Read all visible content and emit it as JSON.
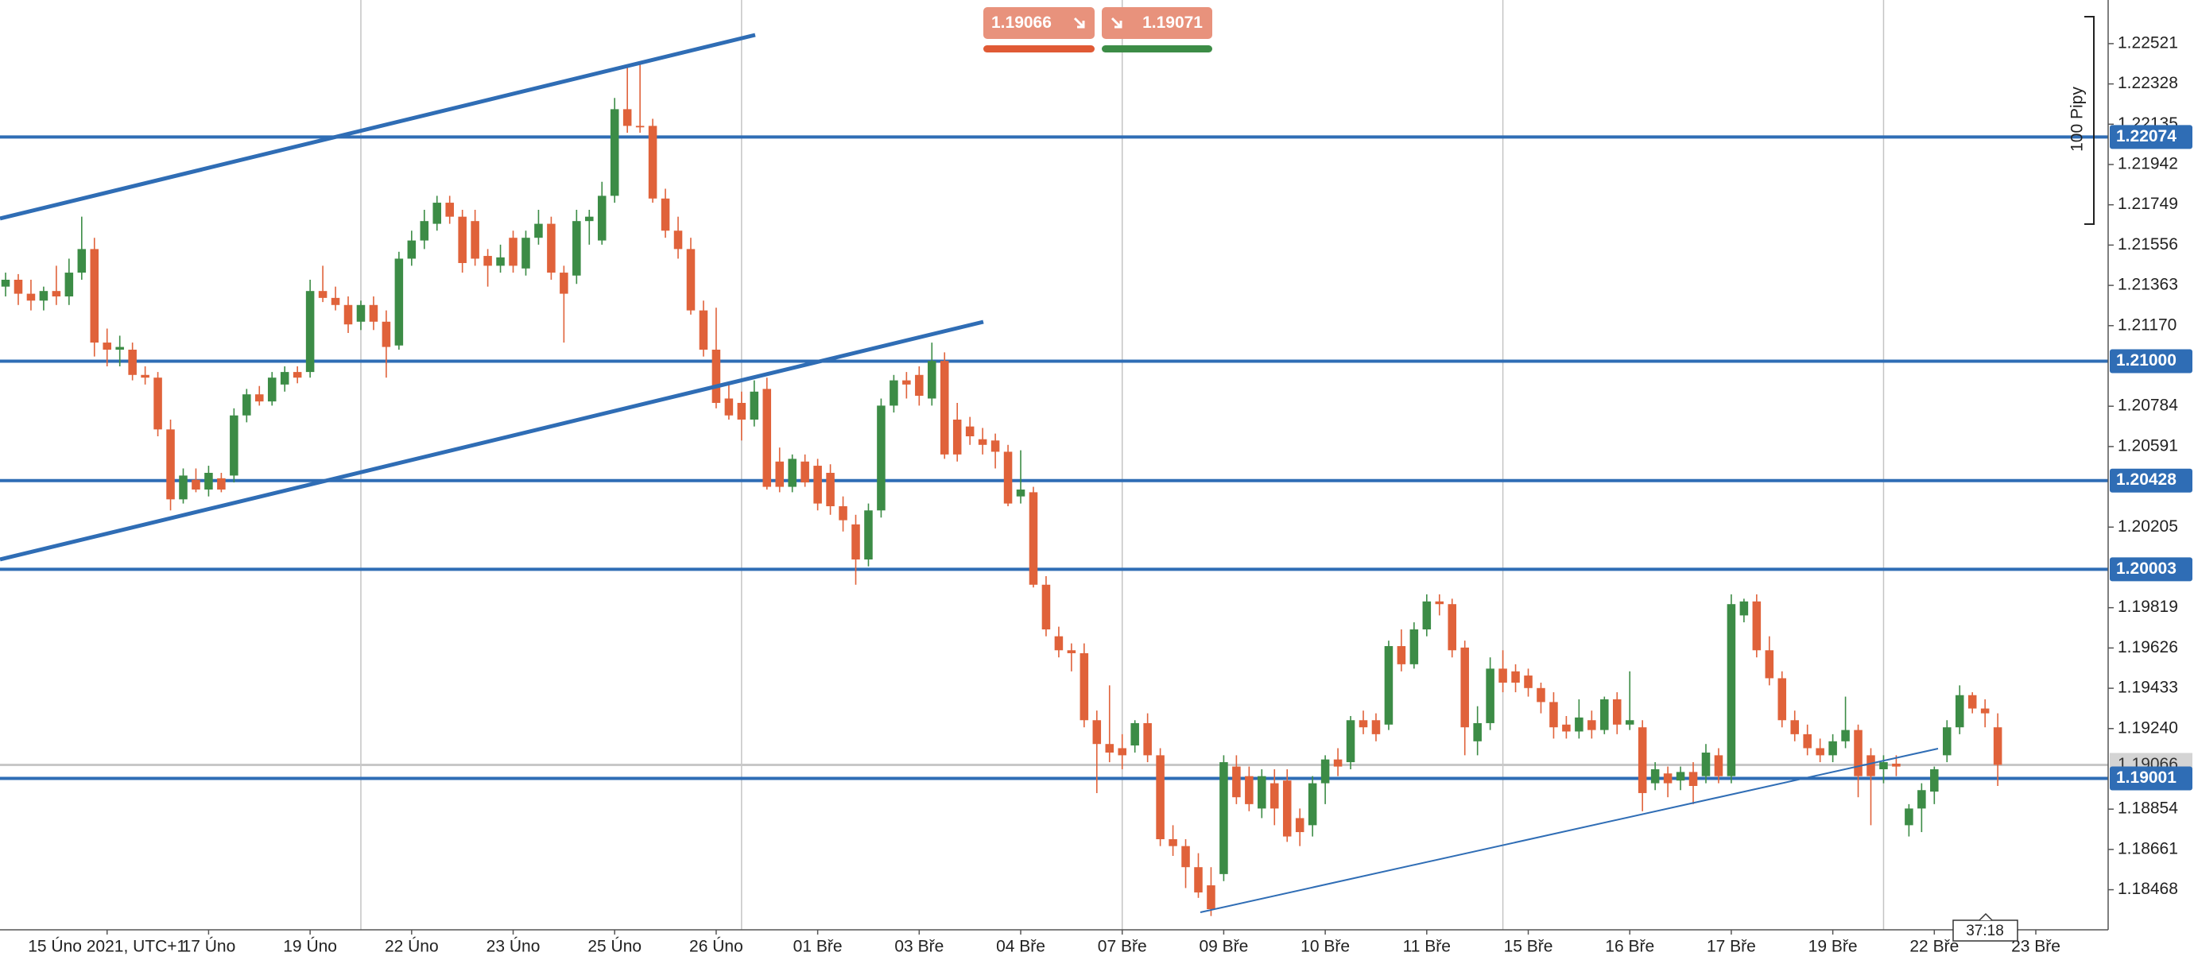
{
  "chart_data": {
    "type": "candlestick",
    "colors": {
      "up": "#3c8c46",
      "down": "#e0623a",
      "level": "#2f6db5",
      "current": "#c8c8c8"
    },
    "xlim": [
      -0.44,
      165.7
    ],
    "ylim": [
      1.18276,
      1.2273
    ],
    "yticks": [
      1.22521,
      1.22328,
      1.22135,
      1.21942,
      1.21749,
      1.21556,
      1.21363,
      {
        "value": 1.2117,
        "label": "1.21170"
      },
      1.20784,
      1.20591,
      1.20205,
      1.19819,
      1.19626,
      1.19433,
      {
        "value": 1.1924,
        "label": "1.19240"
      },
      1.18854,
      1.18661,
      1.18468
    ],
    "xticks": [
      {
        "value": 8,
        "label": "15 Úno 2021, UTC+1"
      },
      {
        "value": 16,
        "label": "17 Úno"
      },
      {
        "value": 24,
        "label": "19 Úno"
      },
      {
        "value": 32,
        "label": "22 Úno"
      },
      {
        "value": 40,
        "label": "23 Úno"
      },
      {
        "value": 48,
        "label": "25 Úno"
      },
      {
        "value": 56,
        "label": "26 Úno"
      },
      {
        "value": 64,
        "label": "01 Bře"
      },
      {
        "value": 72,
        "label": "03 Bře"
      },
      {
        "value": 80,
        "label": "04 Bře"
      },
      {
        "value": 88,
        "label": "07 Bře"
      },
      {
        "value": 96,
        "label": "09 Bře"
      },
      {
        "value": 104,
        "label": "10 Bře"
      },
      {
        "value": 112,
        "label": "11 Bře"
      },
      {
        "value": 120,
        "label": "15 Bře"
      },
      {
        "value": 128,
        "label": "16 Bře"
      },
      {
        "value": 136,
        "label": "17 Bře"
      },
      {
        "value": 144,
        "label": "19 Bře"
      },
      {
        "value": 152,
        "label": "22 Bře"
      },
      {
        "value": 160,
        "label": "23 Bře"
      }
    ],
    "xgrid": [
      28,
      58,
      88,
      118,
      148
    ],
    "levels": [
      1.22074,
      {
        "value": 1.21,
        "label": "1.21000"
      },
      1.20428,
      1.20003,
      1.19001
    ],
    "current_price": 1.19066,
    "ruler_label": "100 Pipy",
    "countdown": "37:18",
    "candles": [
      [
        1.21357,
        1.21424,
        1.2131,
        1.2139
      ],
      [
        1.2139,
        1.21417,
        1.21269,
        1.21323
      ],
      [
        1.21323,
        1.2139,
        1.21243,
        1.2129
      ],
      [
        1.2129,
        1.21357,
        1.21243,
        1.21336
      ],
      [
        1.21336,
        1.21457,
        1.21269,
        1.2131
      ],
      [
        1.2131,
        1.21491,
        1.21269,
        1.21424
      ],
      [
        1.21424,
        1.21692,
        1.2139,
        1.21537
      ],
      [
        1.21537,
        1.21591,
        1.21022,
        1.21089
      ],
      [
        1.21089,
        1.21156,
        1.20975,
        1.21055
      ],
      [
        1.21055,
        1.21122,
        1.20975,
        1.21068
      ],
      [
        1.21055,
        1.21089,
        1.20908,
        1.20934
      ],
      [
        1.20934,
        1.20975,
        1.20888,
        1.20921
      ],
      [
        1.20921,
        1.20948,
        1.2064,
        1.20673
      ],
      [
        1.20673,
        1.2072,
        1.20285,
        1.20338
      ],
      [
        1.20338,
        1.20486,
        1.20318,
        1.20452
      ],
      [
        1.20432,
        1.20486,
        1.20372,
        1.20385
      ],
      [
        1.20385,
        1.20499,
        1.20352,
        1.20465
      ],
      [
        1.20439,
        1.20465,
        1.20372,
        1.20385
      ],
      [
        1.20452,
        1.20774,
        1.20419,
        1.2074
      ],
      [
        1.2074,
        1.20867,
        1.20707,
        1.20841
      ],
      [
        1.20841,
        1.20881,
        1.20787,
        1.20807
      ],
      [
        1.20807,
        1.20948,
        1.20787,
        1.20921
      ],
      [
        1.20888,
        1.20975,
        1.20854,
        1.20948
      ],
      [
        1.20948,
        1.20975,
        1.20894,
        1.20921
      ],
      [
        1.20948,
        1.2139,
        1.20921,
        1.21336
      ],
      [
        1.21336,
        1.21457,
        1.21283,
        1.21303
      ],
      [
        1.21303,
        1.21357,
        1.21243,
        1.21269
      ],
      [
        1.21269,
        1.2131,
        1.21135,
        1.21176
      ],
      [
        1.21189,
        1.2129,
        1.21149,
        1.21269
      ],
      [
        1.21269,
        1.2131,
        1.21149,
        1.21189
      ],
      [
        1.21189,
        1.21243,
        1.20921,
        1.21068
      ],
      [
        1.21075,
        1.21524,
        1.21055,
        1.21491
      ],
      [
        1.21491,
        1.21625,
        1.21457,
        1.21578
      ],
      [
        1.21578,
        1.21725,
        1.21537,
        1.21671
      ],
      [
        1.21658,
        1.21792,
        1.21625,
        1.21759
      ],
      [
        1.21759,
        1.21792,
        1.21658,
        1.21692
      ],
      [
        1.21692,
        1.21725,
        1.21424,
        1.2147
      ],
      [
        1.21671,
        1.21725,
        1.21457,
        1.21491
      ],
      [
        1.21504,
        1.21537,
        1.21357,
        1.21457
      ],
      [
        1.21457,
        1.21558,
        1.21424,
        1.21497
      ],
      [
        1.21591,
        1.21625,
        1.21424,
        1.21457
      ],
      [
        1.21444,
        1.21625,
        1.2141,
        1.21591
      ],
      [
        1.21591,
        1.21725,
        1.21558,
        1.21658
      ],
      [
        1.21658,
        1.21692,
        1.2139,
        1.21424
      ],
      [
        1.21424,
        1.21457,
        1.21089,
        1.21323
      ],
      [
        1.2141,
        1.21725,
        1.2137,
        1.21671
      ],
      [
        1.21671,
        1.21725,
        1.21558,
        1.21692
      ],
      [
        1.21578,
        1.21859,
        1.21558,
        1.21792
      ],
      [
        1.21792,
        1.22261,
        1.21759,
        1.22207
      ],
      [
        1.22207,
        1.22408,
        1.22094,
        1.22127
      ],
      [
        1.22127,
        1.22428,
        1.22094,
        1.2212
      ],
      [
        1.22127,
        1.22161,
        1.21759,
        1.21779
      ],
      [
        1.21779,
        1.21826,
        1.21591,
        1.21625
      ],
      [
        1.21625,
        1.21692,
        1.21491,
        1.21537
      ],
      [
        1.21537,
        1.21591,
        1.21223,
        1.21243
      ],
      [
        1.21243,
        1.2129,
        1.21022,
        1.21055
      ],
      [
        1.21055,
        1.21256,
        1.20774,
        1.208
      ],
      [
        1.20821,
        1.20888,
        1.2072,
        1.2074
      ],
      [
        1.208,
        1.20854,
        1.2062,
        1.2072
      ],
      [
        1.2072,
        1.20908,
        1.20687,
        1.20854
      ],
      [
        1.20867,
        1.20921,
        1.20385,
        1.20398
      ],
      [
        1.20519,
        1.20586,
        1.20372,
        1.20398
      ],
      [
        1.20398,
        1.20553,
        1.20372,
        1.20532
      ],
      [
        1.20519,
        1.20553,
        1.20398,
        1.20419
      ],
      [
        1.20499,
        1.20532,
        1.20285,
        1.20318
      ],
      [
        1.20465,
        1.20506,
        1.20264,
        1.20305
      ],
      [
        1.20305,
        1.20352,
        1.20184,
        1.20238
      ],
      [
        1.20218,
        1.20264,
        1.19929,
        1.2005
      ],
      [
        1.2005,
        1.20318,
        1.20017,
        1.20285
      ],
      [
        1.20285,
        1.20821,
        1.20251,
        1.20787
      ],
      [
        1.20787,
        1.20934,
        1.20754,
        1.20908
      ],
      [
        1.20908,
        1.20948,
        1.20821,
        1.20888
      ],
      [
        1.20934,
        1.20975,
        1.20787,
        1.20834
      ],
      [
        1.20821,
        1.21089,
        1.20787,
        1.21001
      ],
      [
        1.21001,
        1.21042,
        1.20532,
        1.20553
      ],
      [
        1.2072,
        1.208,
        1.20519,
        1.20553
      ],
      [
        1.20687,
        1.20733,
        1.20599,
        1.2064
      ],
      [
        1.20626,
        1.2068,
        1.20553,
        1.20599
      ],
      [
        1.2062,
        1.20653,
        1.20486,
        1.20566
      ],
      [
        1.20566,
        1.20599,
        1.20305,
        1.20318
      ],
      [
        1.20352,
        1.20573,
        1.20318,
        1.20385
      ],
      [
        1.20372,
        1.20398,
        1.19916,
        1.19929
      ],
      [
        1.19929,
        1.1997,
        1.19682,
        1.19715
      ],
      [
        1.19682,
        1.19728,
        1.19581,
        1.19615
      ],
      [
        1.19615,
        1.19648,
        1.19514,
        1.19601
      ],
      [
        1.19601,
        1.19648,
        1.19246,
        1.1928
      ],
      [
        1.1928,
        1.19326,
        1.18931,
        1.19166
      ],
      [
        1.19166,
        1.19447,
        1.19079,
        1.19125
      ],
      [
        1.19146,
        1.19213,
        1.19045,
        1.19112
      ],
      [
        1.19159,
        1.1928,
        1.19125,
        1.19266
      ],
      [
        1.19266,
        1.19313,
        1.19079,
        1.19112
      ],
      [
        1.19112,
        1.19146,
        1.18677,
        1.1871
      ],
      [
        1.1871,
        1.18777,
        1.1863,
        1.18677
      ],
      [
        1.18677,
        1.1871,
        1.18476,
        1.18576
      ],
      [
        1.18576,
        1.18643,
        1.18429,
        1.18455
      ],
      [
        1.18489,
        1.18576,
        1.18342,
        1.18375
      ],
      [
        1.18543,
        1.19112,
        1.18509,
        1.19079
      ],
      [
        1.19058,
        1.19112,
        1.18878,
        1.18911
      ],
      [
        1.19012,
        1.19058,
        1.18844,
        1.18878
      ],
      [
        1.18857,
        1.19045,
        1.18811,
        1.19012
      ],
      [
        1.18978,
        1.19045,
        1.18777,
        1.18857
      ],
      [
        1.18991,
        1.19045,
        1.18697,
        1.18723
      ],
      [
        1.18811,
        1.18857,
        1.18677,
        1.18744
      ],
      [
        1.18777,
        1.19012,
        1.18723,
        1.18978
      ],
      [
        1.18978,
        1.19112,
        1.18878,
        1.19092
      ],
      [
        1.19092,
        1.19146,
        1.19012,
        1.19058
      ],
      [
        1.19079,
        1.193,
        1.19045,
        1.1928
      ],
      [
        1.1928,
        1.19326,
        1.19213,
        1.19246
      ],
      [
        1.1928,
        1.19313,
        1.19179,
        1.19213
      ],
      [
        1.19259,
        1.19661,
        1.19233,
        1.19635
      ],
      [
        1.19635,
        1.19715,
        1.19514,
        1.19548
      ],
      [
        1.19548,
        1.19749,
        1.19527,
        1.19715
      ],
      [
        1.19715,
        1.19883,
        1.19682,
        1.19849
      ],
      [
        1.19849,
        1.19883,
        1.19782,
        1.19836
      ],
      [
        1.19836,
        1.19862,
        1.19581,
        1.19615
      ],
      [
        1.19628,
        1.19661,
        1.19112,
        1.19246
      ],
      [
        1.19179,
        1.19347,
        1.19112,
        1.19266
      ],
      [
        1.19266,
        1.19581,
        1.19233,
        1.19527
      ],
      [
        1.19527,
        1.19615,
        1.19414,
        1.1946
      ],
      [
        1.19514,
        1.19548,
        1.19414,
        1.1946
      ],
      [
        1.19494,
        1.19527,
        1.19393,
        1.19434
      ],
      [
        1.19434,
        1.1946,
        1.19313,
        1.19367
      ],
      [
        1.19367,
        1.19414,
        1.19192,
        1.19246
      ],
      [
        1.19259,
        1.193,
        1.19192,
        1.19226
      ],
      [
        1.19226,
        1.1938,
        1.19192,
        1.19293
      ],
      [
        1.1928,
        1.19326,
        1.19192,
        1.19233
      ],
      [
        1.19233,
        1.19393,
        1.19213,
        1.1938
      ],
      [
        1.1938,
        1.19414,
        1.19213,
        1.19259
      ],
      [
        1.19259,
        1.19514,
        1.19233,
        1.1928
      ],
      [
        1.19246,
        1.1928,
        1.18844,
        1.18931
      ],
      [
        1.18978,
        1.19079,
        1.18945,
        1.19045
      ],
      [
        1.19025,
        1.19058,
        1.18911,
        1.18978
      ],
      [
        1.18991,
        1.19058,
        1.18945,
        1.19032
      ],
      [
        1.19032,
        1.19079,
        1.18878,
        1.18965
      ],
      [
        1.19012,
        1.19166,
        1.18978,
        1.19125
      ],
      [
        1.19112,
        1.19146,
        1.18978,
        1.19012
      ],
      [
        1.19012,
        1.19883,
        1.18978,
        1.19836
      ],
      [
        1.19782,
        1.19862,
        1.19749,
        1.19849
      ],
      [
        1.19849,
        1.19883,
        1.19581,
        1.19615
      ],
      [
        1.19615,
        1.19682,
        1.19447,
        1.19481
      ],
      [
        1.19481,
        1.19514,
        1.19246,
        1.1928
      ],
      [
        1.1928,
        1.19326,
        1.19179,
        1.19213
      ],
      [
        1.19213,
        1.19259,
        1.19112,
        1.19146
      ],
      [
        1.19146,
        1.19192,
        1.19079,
        1.19112
      ],
      [
        1.19112,
        1.19213,
        1.19079,
        1.19179
      ],
      [
        1.19179,
        1.19393,
        1.19146,
        1.19233
      ],
      [
        1.19233,
        1.19259,
        1.18911,
        1.19012
      ],
      [
        1.19112,
        1.19146,
        1.18777,
        1.19012
      ],
      [
        1.19045,
        1.19112,
        1.18978,
        1.19079
      ],
      [
        1.19072,
        1.19112,
        1.19012,
        1.19058
      ],
      [
        1.18777,
        1.18878,
        1.18723,
        1.18857
      ],
      [
        1.18857,
        1.18978,
        1.18744,
        1.18945
      ],
      [
        1.18938,
        1.19058,
        1.18878,
        1.19045
      ],
      [
        1.19112,
        1.1928,
        1.19079,
        1.19246
      ],
      [
        1.19246,
        1.19447,
        1.19213,
        1.194
      ],
      [
        1.194,
        1.19414,
        1.19313,
        1.19336
      ],
      [
        1.19336,
        1.1938,
        1.19246,
        1.19313
      ],
      [
        1.19246,
        1.19313,
        1.18965,
        1.19066
      ]
    ]
  },
  "trade_panel": {
    "sell": "1.19066",
    "buy": "1.19071"
  }
}
